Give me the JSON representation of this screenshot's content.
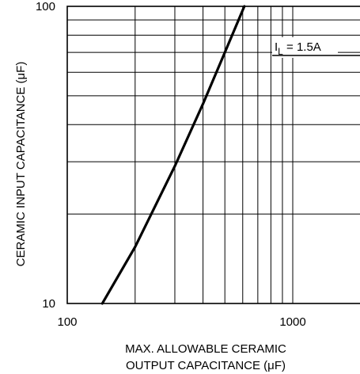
{
  "chart_data": {
    "type": "line",
    "title": "",
    "xlabel_line1": "MAX. ALLOWABLE CERAMIC",
    "xlabel_line2": "OUTPUT CAPACITANCE (μF)",
    "ylabel": "CERAMIC INPUT CAPACITANCE (μF)",
    "x_scale": "log",
    "y_scale": "log",
    "xlim": [
      100,
      2000
    ],
    "ylim": [
      10,
      100
    ],
    "grid": true,
    "x_tick_labels": [
      {
        "value": 100,
        "label": "100"
      },
      {
        "value": 1000,
        "label": "1000"
      }
    ],
    "y_tick_labels": [
      {
        "value": 100,
        "label": "100"
      },
      {
        "value": 10,
        "label": "10"
      }
    ],
    "annotation": {
      "prefix": "I",
      "subscript": "L",
      "suffix": " = 1.5A"
    },
    "series": [
      {
        "x": [
          143,
          200,
          300,
          400,
          500,
          610
        ],
        "y": [
          10,
          15.5,
          29,
          47,
          70,
          100
        ]
      }
    ]
  }
}
